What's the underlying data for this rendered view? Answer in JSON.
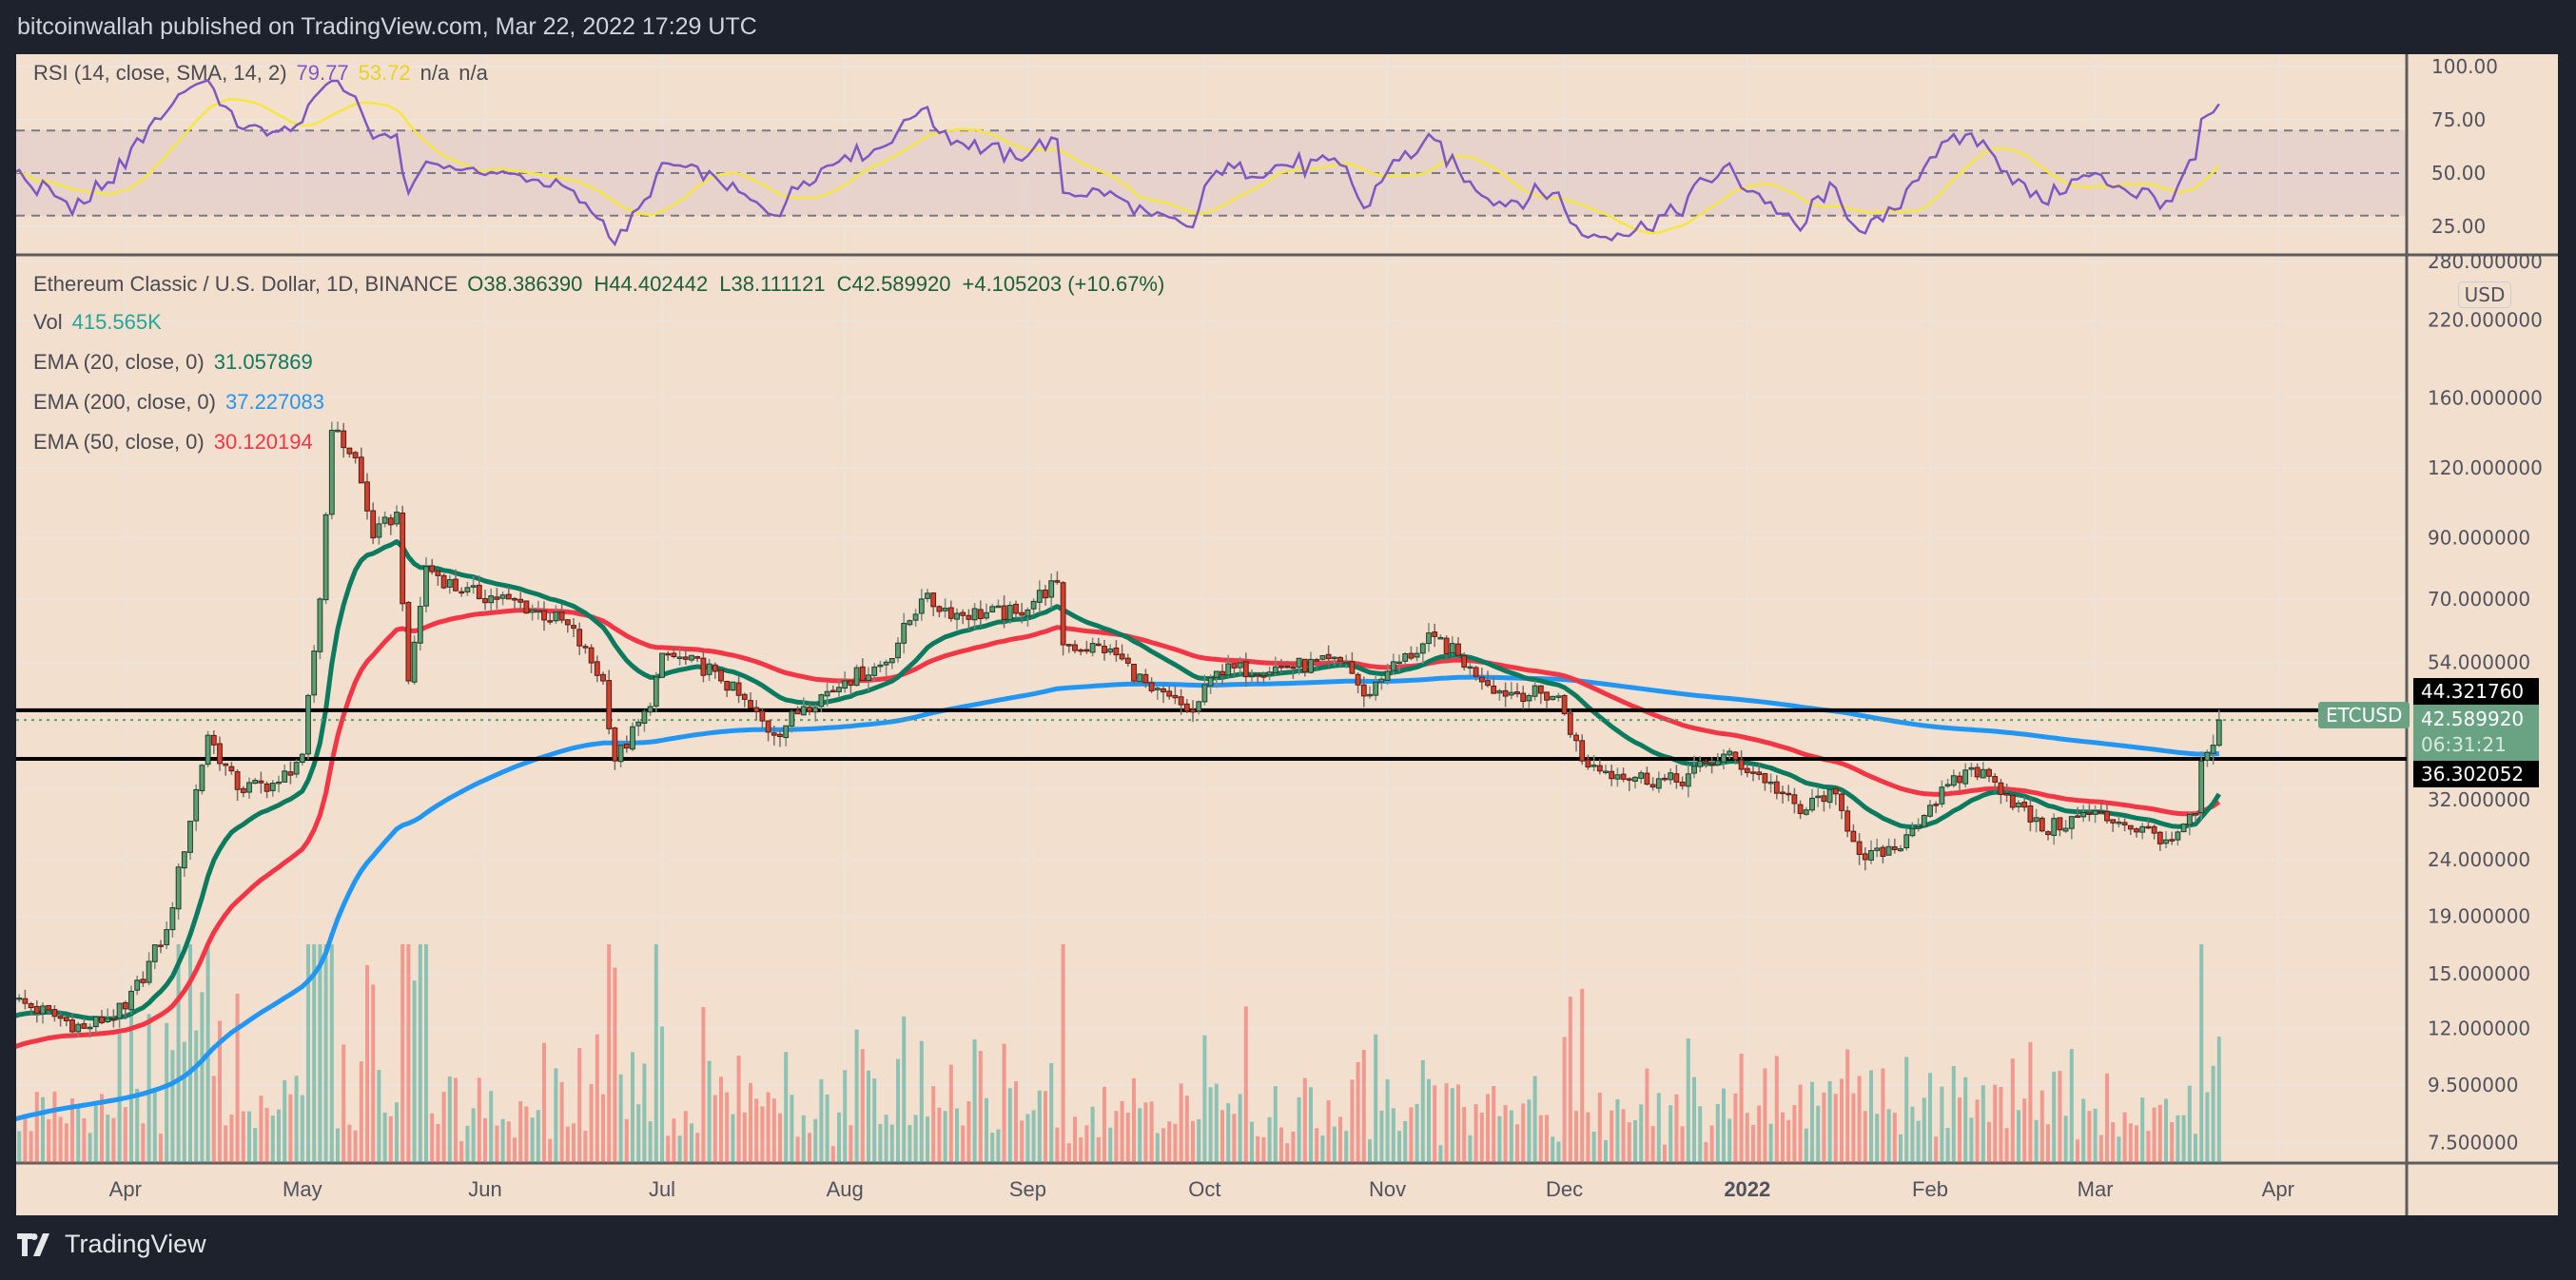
{
  "header": {
    "title": "bitcoinwallah published on TradingView.com, Mar 22, 2022 17:29 UTC"
  },
  "rsi_legend": {
    "label": "RSI (14, close, SMA, 14, 2)",
    "rsi": "79.77",
    "sma": "53.72",
    "na1": "n/a",
    "na2": "n/a"
  },
  "price_legend": {
    "symbol": "Ethereum Classic / U.S. Dollar, 1D, BINANCE",
    "open": "O38.386390",
    "high": "H44.402442",
    "low": "L38.111121",
    "close": "C42.589920",
    "change": "+4.105203 (+10.67%)",
    "vol_label": "Vol",
    "vol_value": "415.565K",
    "ema20_label": "EMA (20, close, 0)",
    "ema20_value": "31.057869",
    "ema200_label": "EMA (200, close, 0)",
    "ema200_value": "37.227083",
    "ema50_label": "EMA (50, close, 0)",
    "ema50_value": "30.120194"
  },
  "price_axis": {
    "currency": "USD",
    "symbol_tag": "ETCUSD",
    "last_price": "42.589920",
    "countdown": "06:31:21",
    "upper_level": "44.321760",
    "lower_level": "36.302052"
  },
  "branding": {
    "logo_text": "TradingView"
  },
  "colors": {
    "up": "#5a9e72",
    "down": "#d0402f",
    "ema20": "#0b7b5f",
    "ema50": "#f23645",
    "ema200": "#2196f3",
    "rsi": "#7e57c2",
    "rsi_sma": "#f5e642"
  },
  "chart_data": {
    "type": "candlestick",
    "title": "Ethereum Classic / U.S. Dollar, 1D, BINANCE",
    "y_scale": "log",
    "ylim": [
      7.5,
      280
    ],
    "grid": true,
    "y_ticks": [
      "280.000000",
      "220.000000",
      "160.000000",
      "120.000000",
      "90.000000",
      "70.000000",
      "54.000000",
      "32.000000",
      "24.000000",
      "19.000000",
      "15.000000",
      "12.000000",
      "9.500000",
      "7.500000"
    ],
    "rsi_ticks": [
      "100.00",
      "75.00",
      "50.00",
      "25.00"
    ],
    "rsi_bands": [
      30,
      50,
      70
    ],
    "x_ticks": [
      {
        "label": "Apr",
        "date": "2021-04-01"
      },
      {
        "label": "May",
        "date": "2021-05-01"
      },
      {
        "label": "Jun",
        "date": "2021-06-01"
      },
      {
        "label": "Jul",
        "date": "2021-07-01"
      },
      {
        "label": "Aug",
        "date": "2021-08-01"
      },
      {
        "label": "Sep",
        "date": "2021-09-01"
      },
      {
        "label": "Oct",
        "date": "2021-10-01"
      },
      {
        "label": "Nov",
        "date": "2021-11-01"
      },
      {
        "label": "Dec",
        "date": "2021-12-01"
      },
      {
        "label": "2022",
        "date": "2022-01-01"
      },
      {
        "label": "Feb",
        "date": "2022-02-01"
      },
      {
        "label": "Mar",
        "date": "2022-03-01"
      },
      {
        "label": "Apr",
        "date": "2022-04-01"
      }
    ],
    "start_date": "2021-03-13",
    "horizontal_levels": [
      44.32176,
      36.302052
    ],
    "last_candle": {
      "date": "2022-03-22",
      "open": 38.38639,
      "high": 44.402442,
      "low": 38.111121,
      "close": 42.58992
    },
    "close_keypoints": [
      [
        "2021-03-13",
        13.5
      ],
      [
        "2021-03-25",
        12
      ],
      [
        "2021-04-01",
        13
      ],
      [
        "2021-04-08",
        18
      ],
      [
        "2021-04-15",
        40
      ],
      [
        "2021-04-20",
        32
      ],
      [
        "2021-04-27",
        33
      ],
      [
        "2021-05-01",
        37
      ],
      [
        "2021-05-04",
        70
      ],
      [
        "2021-05-06",
        140
      ],
      [
        "2021-05-10",
        125
      ],
      [
        "2021-05-13",
        90
      ],
      [
        "2021-05-17",
        100
      ],
      [
        "2021-05-19",
        50
      ],
      [
        "2021-05-22",
        80
      ],
      [
        "2021-05-28",
        72
      ],
      [
        "2021-06-05",
        70
      ],
      [
        "2021-06-15",
        63
      ],
      [
        "2021-06-21",
        50
      ],
      [
        "2021-06-23",
        36
      ],
      [
        "2021-06-29",
        45
      ],
      [
        "2021-07-01",
        56
      ],
      [
        "2021-07-10",
        52
      ],
      [
        "2021-07-20",
        40
      ],
      [
        "2021-07-25",
        45
      ],
      [
        "2021-08-01",
        50
      ],
      [
        "2021-08-08",
        54
      ],
      [
        "2021-08-14",
        70
      ],
      [
        "2021-08-20",
        66
      ],
      [
        "2021-08-30",
        66
      ],
      [
        "2021-09-06",
        75
      ],
      [
        "2021-09-07",
        58
      ],
      [
        "2021-09-15",
        57
      ],
      [
        "2021-09-22",
        48
      ],
      [
        "2021-09-29",
        44
      ],
      [
        "2021-10-03",
        52
      ],
      [
        "2021-10-15",
        53
      ],
      [
        "2021-10-25",
        54
      ],
      [
        "2021-10-28",
        47
      ],
      [
        "2021-11-01",
        52
      ],
      [
        "2021-11-09",
        60
      ],
      [
        "2021-11-15",
        53
      ],
      [
        "2021-11-20",
        48
      ],
      [
        "2021-11-30",
        47
      ],
      [
        "2021-12-04",
        36
      ],
      [
        "2021-12-10",
        34
      ],
      [
        "2021-12-20",
        33
      ],
      [
        "2021-12-28",
        37
      ],
      [
        "2022-01-05",
        33
      ],
      [
        "2022-01-10",
        29
      ],
      [
        "2022-01-15",
        32
      ],
      [
        "2022-01-21",
        24
      ],
      [
        "2022-01-26",
        25
      ],
      [
        "2022-02-01",
        30
      ],
      [
        "2022-02-08",
        35
      ],
      [
        "2022-02-12",
        33
      ],
      [
        "2022-02-20",
        27
      ],
      [
        "2022-02-28",
        29
      ],
      [
        "2022-03-05",
        28
      ],
      [
        "2022-03-14",
        26
      ],
      [
        "2022-03-18",
        29
      ],
      [
        "2022-03-19",
        36
      ],
      [
        "2022-03-21",
        38.4
      ]
    ],
    "ema_seeds": {
      "ema20": 12.5,
      "ema50": 11,
      "ema200": 8.2
    }
  }
}
